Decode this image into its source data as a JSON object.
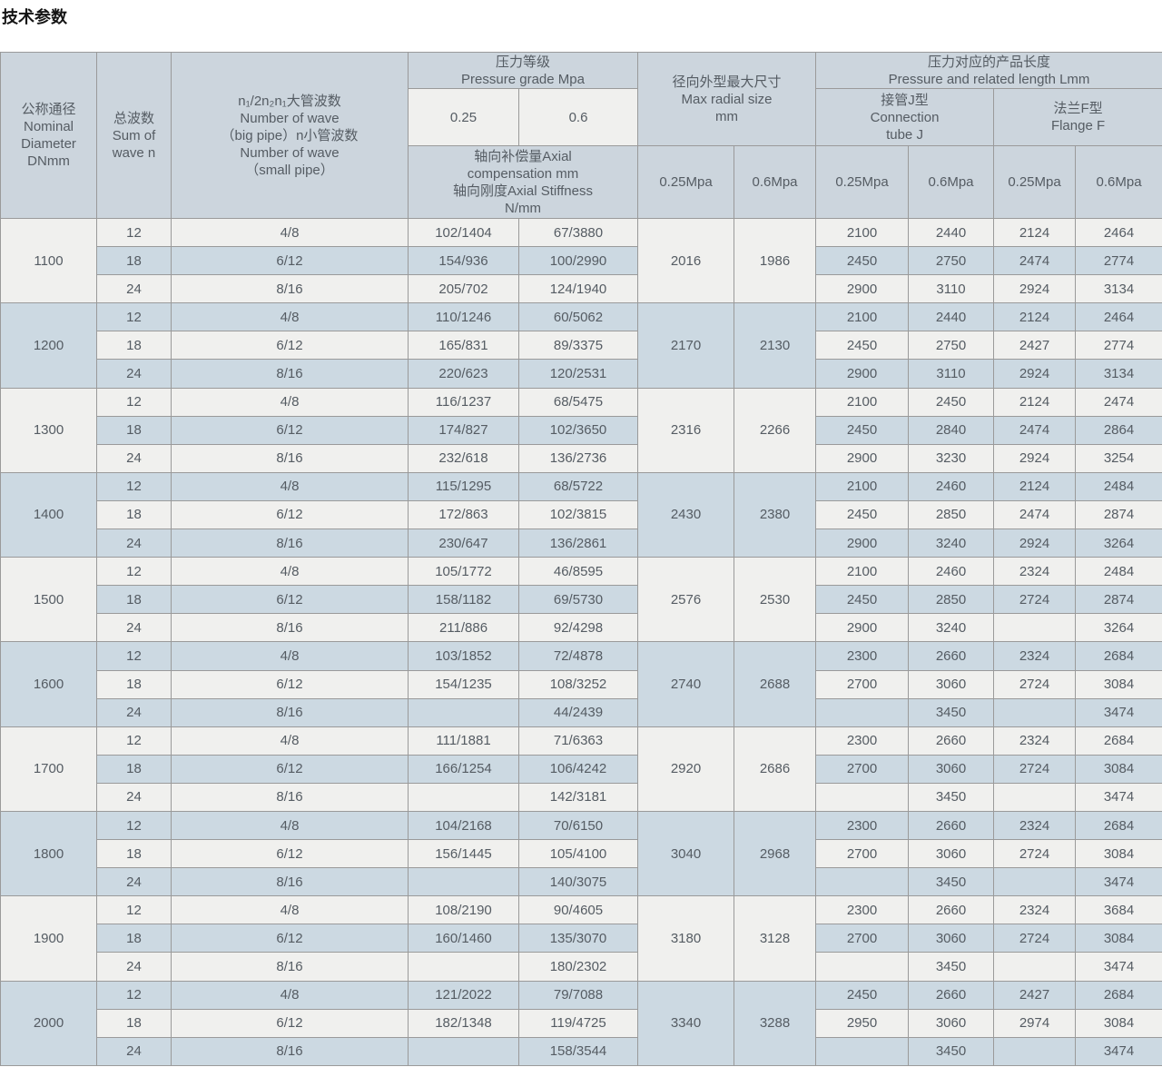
{
  "page_title": "技术参数",
  "colors": {
    "header_bg": "#ccd5dd",
    "stripe_light": "#f0f0ee",
    "stripe_dark": "#ccd9e2",
    "border": "#9a9a9a",
    "text": "#555c63"
  },
  "table": {
    "header": {
      "nominal_diameter": "公称通径\nNominal\nDiameter\nDNmm",
      "sum_of_wave": "总波数\nSum of\nwave n",
      "wave_number": "n₁/2n₂n₁大管波数\nNumber of wave\n（big pipe）n小管波数\nNumber of wave\n（small pipe）",
      "pressure_grade": "压力等级\nPressure grade Mpa",
      "grade_025": "0.25",
      "grade_06": "0.6",
      "axial": "轴向补偿量Axial\ncompensation mm\n轴向刚度Axial Stiffness\nN/mm",
      "max_radial": "径向外型最大尺寸\nMax radial size\nmm",
      "pressure_length": "压力对应的产品长度\nPressure and related length Lmm",
      "connection_j": "接管J型\nConnection\ntube J",
      "flange_f": "法兰F型\nFlange F",
      "mpa_025": "0.25Mpa",
      "mpa_06": "0.6Mpa"
    },
    "groups": [
      {
        "dn": "1100",
        "radial025": "2016",
        "radial06": "1986",
        "rows": [
          {
            "sum": "12",
            "waves": "4/8",
            "axial025": "102/1404",
            "axial06": "67/3880",
            "j025": "2100",
            "j06": "2440",
            "f025": "2124",
            "f06": "2464"
          },
          {
            "sum": "18",
            "waves": "6/12",
            "axial025": "154/936",
            "axial06": "100/2990",
            "j025": "2450",
            "j06": "2750",
            "f025": "2474",
            "f06": "2774"
          },
          {
            "sum": "24",
            "waves": "8/16",
            "axial025": "205/702",
            "axial06": "124/1940",
            "j025": "2900",
            "j06": "3110",
            "f025": "2924",
            "f06": "3134"
          }
        ]
      },
      {
        "dn": "1200",
        "radial025": "2170",
        "radial06": "2130",
        "rows": [
          {
            "sum": "12",
            "waves": "4/8",
            "axial025": "110/1246",
            "axial06": "60/5062",
            "j025": "2100",
            "j06": "2440",
            "f025": "2124",
            "f06": "2464"
          },
          {
            "sum": "18",
            "waves": "6/12",
            "axial025": "165/831",
            "axial06": "89/3375",
            "j025": "2450",
            "j06": "2750",
            "f025": "2427",
            "f06": "2774"
          },
          {
            "sum": "24",
            "waves": "8/16",
            "axial025": "220/623",
            "axial06": "120/2531",
            "j025": "2900",
            "j06": "3110",
            "f025": "2924",
            "f06": "3134"
          }
        ]
      },
      {
        "dn": "1300",
        "radial025": "2316",
        "radial06": "2266",
        "rows": [
          {
            "sum": "12",
            "waves": "4/8",
            "axial025": "116/1237",
            "axial06": "68/5475",
            "j025": "2100",
            "j06": "2450",
            "f025": "2124",
            "f06": "2474"
          },
          {
            "sum": "18",
            "waves": "6/12",
            "axial025": "174/827",
            "axial06": "102/3650",
            "j025": "2450",
            "j06": "2840",
            "f025": "2474",
            "f06": "2864"
          },
          {
            "sum": "24",
            "waves": "8/16",
            "axial025": "232/618",
            "axial06": "136/2736",
            "j025": "2900",
            "j06": "3230",
            "f025": "2924",
            "f06": "3254"
          }
        ]
      },
      {
        "dn": "1400",
        "radial025": "2430",
        "radial06": "2380",
        "rows": [
          {
            "sum": "12",
            "waves": "4/8",
            "axial025": "115/1295",
            "axial06": "68/5722",
            "j025": "2100",
            "j06": "2460",
            "f025": "2124",
            "f06": "2484"
          },
          {
            "sum": "18",
            "waves": "6/12",
            "axial025": "172/863",
            "axial06": "102/3815",
            "j025": "2450",
            "j06": "2850",
            "f025": "2474",
            "f06": "2874"
          },
          {
            "sum": "24",
            "waves": "8/16",
            "axial025": "230/647",
            "axial06": "136/2861",
            "j025": "2900",
            "j06": "3240",
            "f025": "2924",
            "f06": "3264"
          }
        ]
      },
      {
        "dn": "1500",
        "radial025": "2576",
        "radial06": "2530",
        "rows": [
          {
            "sum": "12",
            "waves": "4/8",
            "axial025": "105/1772",
            "axial06": "46/8595",
            "j025": "2100",
            "j06": "2460",
            "f025": "2324",
            "f06": "2484"
          },
          {
            "sum": "18",
            "waves": "6/12",
            "axial025": "158/1182",
            "axial06": "69/5730",
            "j025": "2450",
            "j06": "2850",
            "f025": "2724",
            "f06": "2874"
          },
          {
            "sum": "24",
            "waves": "8/16",
            "axial025": "211/886",
            "axial06": "92/4298",
            "j025": "2900",
            "j06": "3240",
            "f025": "",
            "f06": "3264"
          }
        ]
      },
      {
        "dn": "1600",
        "radial025": "2740",
        "radial06": "2688",
        "rows": [
          {
            "sum": "12",
            "waves": "4/8",
            "axial025": "103/1852",
            "axial06": "72/4878",
            "j025": "2300",
            "j06": "2660",
            "f025": "2324",
            "f06": "2684"
          },
          {
            "sum": "18",
            "waves": "6/12",
            "axial025": "154/1235",
            "axial06": "108/3252",
            "j025": "2700",
            "j06": "3060",
            "f025": "2724",
            "f06": "3084"
          },
          {
            "sum": "24",
            "waves": "8/16",
            "axial025": "",
            "axial06": "44/2439",
            "j025": "",
            "j06": "3450",
            "f025": "",
            "f06": "3474"
          }
        ]
      },
      {
        "dn": "1700",
        "radial025": "2920",
        "radial06": "2686",
        "rows": [
          {
            "sum": "12",
            "waves": "4/8",
            "axial025": "111/1881",
            "axial06": "71/6363",
            "j025": "2300",
            "j06": "2660",
            "f025": "2324",
            "f06": "2684"
          },
          {
            "sum": "18",
            "waves": "6/12",
            "axial025": "166/1254",
            "axial06": "106/4242",
            "j025": "2700",
            "j06": "3060",
            "f025": "2724",
            "f06": "3084"
          },
          {
            "sum": "24",
            "waves": "8/16",
            "axial025": "",
            "axial06": "142/3181",
            "j025": "",
            "j06": "3450",
            "f025": "",
            "f06": "3474"
          }
        ]
      },
      {
        "dn": "1800",
        "radial025": "3040",
        "radial06": "2968",
        "rows": [
          {
            "sum": "12",
            "waves": "4/8",
            "axial025": "104/2168",
            "axial06": "70/6150",
            "j025": "2300",
            "j06": "2660",
            "f025": "2324",
            "f06": "2684"
          },
          {
            "sum": "18",
            "waves": "6/12",
            "axial025": "156/1445",
            "axial06": "105/4100",
            "j025": "2700",
            "j06": "3060",
            "f025": "2724",
            "f06": "3084"
          },
          {
            "sum": "24",
            "waves": "8/16",
            "axial025": "",
            "axial06": "140/3075",
            "j025": "",
            "j06": "3450",
            "f025": "",
            "f06": "3474"
          }
        ]
      },
      {
        "dn": "1900",
        "radial025": "3180",
        "radial06": "3128",
        "rows": [
          {
            "sum": "12",
            "waves": "4/8",
            "axial025": "108/2190",
            "axial06": "90/4605",
            "j025": "2300",
            "j06": "2660",
            "f025": "2324",
            "f06": "3684"
          },
          {
            "sum": "18",
            "waves": "6/12",
            "axial025": "160/1460",
            "axial06": "135/3070",
            "j025": "2700",
            "j06": "3060",
            "f025": "2724",
            "f06": "3084"
          },
          {
            "sum": "24",
            "waves": "8/16",
            "axial025": "",
            "axial06": "180/2302",
            "j025": "",
            "j06": "3450",
            "f025": "",
            "f06": "3474"
          }
        ]
      },
      {
        "dn": "2000",
        "radial025": "3340",
        "radial06": "3288",
        "rows": [
          {
            "sum": "12",
            "waves": "4/8",
            "axial025": "121/2022",
            "axial06": "79/7088",
            "j025": "2450",
            "j06": "2660",
            "f025": "2427",
            "f06": "2684"
          },
          {
            "sum": "18",
            "waves": "6/12",
            "axial025": "182/1348",
            "axial06": "119/4725",
            "j025": "2950",
            "j06": "3060",
            "f025": "2974",
            "f06": "3084"
          },
          {
            "sum": "24",
            "waves": "8/16",
            "axial025": "",
            "axial06": "158/3544",
            "j025": "",
            "j06": "3450",
            "f025": "",
            "f06": "3474"
          }
        ]
      }
    ]
  }
}
